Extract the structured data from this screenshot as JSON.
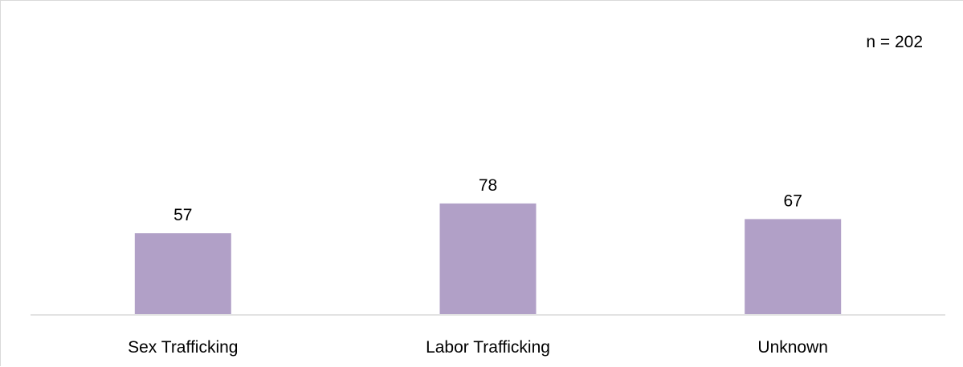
{
  "note": "n = 202",
  "colors": {
    "bar": "#b1a0c7",
    "axis": "#d9d9d9",
    "frame": "#d9d9d9"
  },
  "chart_data": {
    "type": "bar",
    "title": "",
    "xlabel": "",
    "ylabel": "",
    "categories": [
      "Sex Trafficking",
      "Labor Trafficking",
      "Unknown"
    ],
    "values": [
      57,
      78,
      67
    ],
    "ylim": [
      0,
      200
    ],
    "grid": false,
    "legend": "none",
    "data_labels": true
  }
}
